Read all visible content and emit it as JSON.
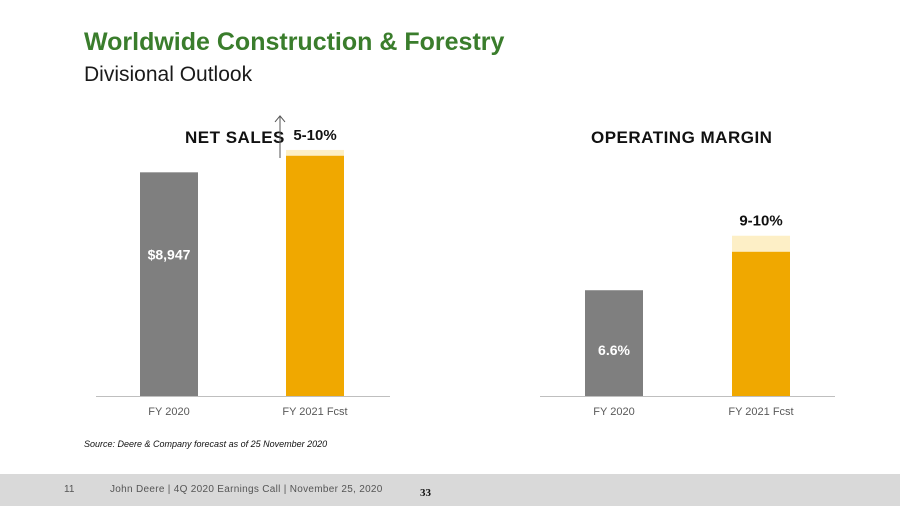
{
  "header": {
    "title": "Worldwide Construction & Forestry",
    "subtitle": "Divisional Outlook"
  },
  "colors": {
    "title_green": "#3a7d2c",
    "actual_gray": "#7f7f7f",
    "forecast_gold": "#f0a800",
    "forecast_range": "#fdefc6",
    "axis": "#bfbfbf"
  },
  "chart_data": [
    {
      "type": "bar",
      "title": "NET SALES",
      "categories": [
        "FY 2020",
        "FY 2021 Fcst"
      ],
      "values": [
        8947,
        9610
      ],
      "range_top": 9842,
      "data_labels": [
        "$8,947",
        "5-10%"
      ],
      "ylim": [
        0,
        10000
      ],
      "arrow": "up"
    },
    {
      "type": "bar",
      "title": "OPERATING MARGIN",
      "categories": [
        "FY 2020",
        "FY 2021 Fcst"
      ],
      "values": [
        6.6,
        9.0
      ],
      "range_top": 10.0,
      "data_labels": [
        "6.6%",
        "9-10%"
      ],
      "ylim": [
        0,
        15.6
      ]
    }
  ],
  "source": "Source: Deere & Company forecast as of 25 November 2020",
  "footer": {
    "page_number": "11",
    "text": "John Deere | 4Q 2020 Earnings Call | November 25, 2020",
    "slide_number": "33"
  }
}
